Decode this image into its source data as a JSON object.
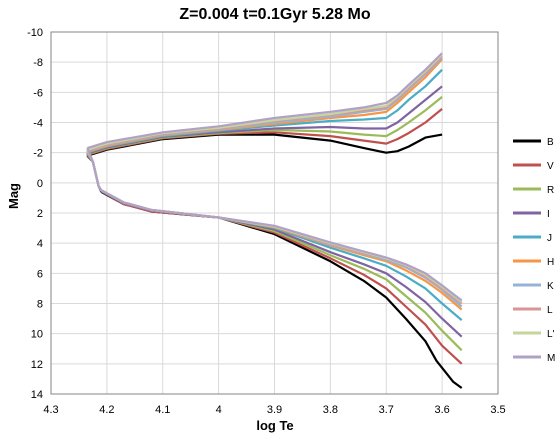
{
  "chart_data": {
    "type": "line",
    "title": "Z=0.004   t=0.1Gyr   5.28 Mo",
    "xlabel": "log Te",
    "ylabel": "Mag",
    "xlim": [
      4.3,
      3.5
    ],
    "ylim": [
      14,
      -10
    ],
    "x_inverted": true,
    "y_inverted": true,
    "grid": true,
    "legend_position": "right",
    "xticks": [
      "4.3",
      "4.2",
      "4.1",
      "4",
      "3.9",
      "3.8",
      "3.7",
      "3.6",
      "3.5"
    ],
    "yticks": [
      "-10",
      "-8",
      "-6",
      "-4",
      "-2",
      "0",
      "2",
      "4",
      "6",
      "8",
      "10",
      "12",
      "14"
    ],
    "series": [
      {
        "name": "B",
        "color": "#000000",
        "lower": [
          [
            4.21,
            0.6
          ],
          [
            4.17,
            1.4
          ],
          [
            4.12,
            1.9
          ],
          [
            4.0,
            2.3
          ],
          [
            3.9,
            3.4
          ],
          [
            3.8,
            5.2
          ],
          [
            3.74,
            6.5
          ],
          [
            3.7,
            7.6
          ],
          [
            3.665,
            9.0
          ],
          [
            3.63,
            10.5
          ],
          [
            3.61,
            11.8
          ],
          [
            3.58,
            13.2
          ],
          [
            3.565,
            13.6
          ]
        ],
        "upper": [
          [
            4.235,
            -1.8
          ],
          [
            4.2,
            -2.2
          ],
          [
            4.1,
            -2.9
          ],
          [
            4.0,
            -3.2
          ],
          [
            3.9,
            -3.2
          ],
          [
            3.8,
            -2.8
          ],
          [
            3.74,
            -2.3
          ],
          [
            3.7,
            -2.0
          ],
          [
            3.68,
            -2.1
          ],
          [
            3.66,
            -2.4
          ],
          [
            3.63,
            -3.0
          ],
          [
            3.6,
            -3.2
          ]
        ]
      },
      {
        "name": "V",
        "color": "#c0504d",
        "lower": [
          [
            4.21,
            0.55
          ],
          [
            4.17,
            1.4
          ],
          [
            4.12,
            1.9
          ],
          [
            4.0,
            2.3
          ],
          [
            3.9,
            3.3
          ],
          [
            3.8,
            5.0
          ],
          [
            3.74,
            6.1
          ],
          [
            3.7,
            7.0
          ],
          [
            3.665,
            8.2
          ],
          [
            3.63,
            9.4
          ],
          [
            3.6,
            10.8
          ],
          [
            3.565,
            12.0
          ]
        ],
        "upper": [
          [
            4.235,
            -1.85
          ],
          [
            4.2,
            -2.25
          ],
          [
            4.1,
            -2.95
          ],
          [
            4.0,
            -3.25
          ],
          [
            3.9,
            -3.35
          ],
          [
            3.8,
            -3.1
          ],
          [
            3.74,
            -2.8
          ],
          [
            3.7,
            -2.6
          ],
          [
            3.68,
            -2.9
          ],
          [
            3.66,
            -3.3
          ],
          [
            3.63,
            -4.0
          ],
          [
            3.6,
            -4.9
          ]
        ]
      },
      {
        "name": "R",
        "color": "#9bbb59",
        "lower": [
          [
            4.21,
            0.55
          ],
          [
            4.17,
            1.35
          ],
          [
            4.12,
            1.85
          ],
          [
            4.0,
            2.3
          ],
          [
            3.9,
            3.2
          ],
          [
            3.8,
            4.8
          ],
          [
            3.74,
            5.7
          ],
          [
            3.7,
            6.4
          ],
          [
            3.665,
            7.5
          ],
          [
            3.63,
            8.6
          ],
          [
            3.6,
            9.8
          ],
          [
            3.565,
            11.1
          ]
        ],
        "upper": [
          [
            4.235,
            -1.9
          ],
          [
            4.2,
            -2.3
          ],
          [
            4.1,
            -3.0
          ],
          [
            4.0,
            -3.3
          ],
          [
            3.9,
            -3.5
          ],
          [
            3.8,
            -3.4
          ],
          [
            3.74,
            -3.2
          ],
          [
            3.7,
            -3.1
          ],
          [
            3.68,
            -3.5
          ],
          [
            3.66,
            -4.0
          ],
          [
            3.63,
            -4.8
          ],
          [
            3.6,
            -5.7
          ]
        ]
      },
      {
        "name": "I",
        "color": "#8064a2",
        "lower": [
          [
            4.21,
            0.55
          ],
          [
            4.17,
            1.35
          ],
          [
            4.12,
            1.85
          ],
          [
            4.0,
            2.3
          ],
          [
            3.9,
            3.1
          ],
          [
            3.8,
            4.6
          ],
          [
            3.74,
            5.4
          ],
          [
            3.7,
            6.0
          ],
          [
            3.665,
            6.9
          ],
          [
            3.63,
            7.9
          ],
          [
            3.6,
            9.0
          ],
          [
            3.565,
            10.2
          ]
        ],
        "upper": [
          [
            4.235,
            -1.95
          ],
          [
            4.2,
            -2.35
          ],
          [
            4.1,
            -3.05
          ],
          [
            4.0,
            -3.35
          ],
          [
            3.9,
            -3.6
          ],
          [
            3.8,
            -3.7
          ],
          [
            3.74,
            -3.6
          ],
          [
            3.7,
            -3.6
          ],
          [
            3.68,
            -4.0
          ],
          [
            3.66,
            -4.6
          ],
          [
            3.63,
            -5.5
          ],
          [
            3.6,
            -6.4
          ]
        ]
      },
      {
        "name": "J",
        "color": "#4bacc6",
        "lower": [
          [
            4.21,
            0.5
          ],
          [
            4.17,
            1.3
          ],
          [
            4.12,
            1.8
          ],
          [
            4.0,
            2.3
          ],
          [
            3.9,
            3.0
          ],
          [
            3.8,
            4.3
          ],
          [
            3.74,
            5.0
          ],
          [
            3.7,
            5.5
          ],
          [
            3.665,
            6.2
          ],
          [
            3.63,
            7.0
          ],
          [
            3.6,
            8.0
          ],
          [
            3.565,
            9.1
          ]
        ],
        "upper": [
          [
            4.235,
            -2.0
          ],
          [
            4.2,
            -2.4
          ],
          [
            4.1,
            -3.1
          ],
          [
            4.0,
            -3.45
          ],
          [
            3.9,
            -3.8
          ],
          [
            3.8,
            -4.1
          ],
          [
            3.74,
            -4.2
          ],
          [
            3.7,
            -4.3
          ],
          [
            3.68,
            -4.8
          ],
          [
            3.66,
            -5.5
          ],
          [
            3.63,
            -6.4
          ],
          [
            3.6,
            -7.5
          ]
        ]
      },
      {
        "name": "H",
        "color": "#f79646",
        "lower": [
          [
            4.21,
            0.5
          ],
          [
            4.17,
            1.3
          ],
          [
            4.12,
            1.8
          ],
          [
            4.0,
            2.3
          ],
          [
            3.9,
            2.95
          ],
          [
            3.8,
            4.15
          ],
          [
            3.74,
            4.8
          ],
          [
            3.7,
            5.2
          ],
          [
            3.665,
            5.8
          ],
          [
            3.63,
            6.5
          ],
          [
            3.6,
            7.3
          ],
          [
            3.565,
            8.4
          ]
        ],
        "upper": [
          [
            4.235,
            -2.05
          ],
          [
            4.2,
            -2.45
          ],
          [
            4.1,
            -3.15
          ],
          [
            4.0,
            -3.5
          ],
          [
            3.9,
            -3.9
          ],
          [
            3.8,
            -4.3
          ],
          [
            3.74,
            -4.5
          ],
          [
            3.7,
            -4.7
          ],
          [
            3.68,
            -5.3
          ],
          [
            3.66,
            -6.0
          ],
          [
            3.63,
            -7.0
          ],
          [
            3.6,
            -8.2
          ]
        ]
      },
      {
        "name": "K",
        "color": "#95b3d7",
        "lower": [
          [
            4.21,
            0.5
          ],
          [
            4.17,
            1.3
          ],
          [
            4.12,
            1.8
          ],
          [
            4.0,
            2.3
          ],
          [
            3.9,
            2.9
          ],
          [
            3.8,
            4.1
          ],
          [
            3.74,
            4.7
          ],
          [
            3.7,
            5.1
          ],
          [
            3.665,
            5.6
          ],
          [
            3.63,
            6.3
          ],
          [
            3.6,
            7.1
          ],
          [
            3.565,
            8.2
          ]
        ],
        "upper": [
          [
            4.235,
            -2.1
          ],
          [
            4.2,
            -2.5
          ],
          [
            4.1,
            -3.2
          ],
          [
            4.0,
            -3.55
          ],
          [
            3.9,
            -4.0
          ],
          [
            3.8,
            -4.4
          ],
          [
            3.74,
            -4.7
          ],
          [
            3.7,
            -4.9
          ],
          [
            3.68,
            -5.5
          ],
          [
            3.66,
            -6.2
          ],
          [
            3.63,
            -7.2
          ],
          [
            3.6,
            -8.3
          ]
        ]
      },
      {
        "name": "L",
        "color": "#d99694",
        "lower": [
          [
            4.21,
            0.5
          ],
          [
            4.17,
            1.3
          ],
          [
            4.12,
            1.8
          ],
          [
            4.0,
            2.3
          ],
          [
            3.9,
            2.9
          ],
          [
            3.8,
            4.05
          ],
          [
            3.74,
            4.65
          ],
          [
            3.7,
            5.0
          ],
          [
            3.665,
            5.5
          ],
          [
            3.63,
            6.2
          ],
          [
            3.6,
            7.0
          ],
          [
            3.565,
            8.0
          ]
        ],
        "upper": [
          [
            4.235,
            -2.15
          ],
          [
            4.2,
            -2.55
          ],
          [
            4.1,
            -3.25
          ],
          [
            4.0,
            -3.6
          ],
          [
            3.9,
            -4.1
          ],
          [
            3.8,
            -4.5
          ],
          [
            3.74,
            -4.8
          ],
          [
            3.7,
            -5.0
          ],
          [
            3.68,
            -5.6
          ],
          [
            3.66,
            -6.3
          ],
          [
            3.63,
            -7.3
          ],
          [
            3.6,
            -8.4
          ]
        ]
      },
      {
        "name": "L'",
        "color": "#c3d69b",
        "lower": [
          [
            4.21,
            0.5
          ],
          [
            4.17,
            1.3
          ],
          [
            4.12,
            1.8
          ],
          [
            4.0,
            2.3
          ],
          [
            3.9,
            2.9
          ],
          [
            3.8,
            4.0
          ],
          [
            3.74,
            4.6
          ],
          [
            3.7,
            5.0
          ],
          [
            3.665,
            5.45
          ],
          [
            3.63,
            6.1
          ],
          [
            3.6,
            6.9
          ],
          [
            3.565,
            7.9
          ]
        ],
        "upper": [
          [
            4.235,
            -2.2
          ],
          [
            4.2,
            -2.6
          ],
          [
            4.1,
            -3.3
          ],
          [
            4.0,
            -3.65
          ],
          [
            3.9,
            -4.15
          ],
          [
            3.8,
            -4.55
          ],
          [
            3.74,
            -4.9
          ],
          [
            3.7,
            -5.1
          ],
          [
            3.68,
            -5.7
          ],
          [
            3.66,
            -6.4
          ],
          [
            3.63,
            -7.4
          ],
          [
            3.6,
            -8.5
          ]
        ]
      },
      {
        "name": "M",
        "color": "#b2a1c7",
        "lower": [
          [
            4.21,
            0.5
          ],
          [
            4.17,
            1.3
          ],
          [
            4.12,
            1.8
          ],
          [
            4.0,
            2.3
          ],
          [
            3.9,
            2.85
          ],
          [
            3.8,
            3.95
          ],
          [
            3.74,
            4.55
          ],
          [
            3.7,
            4.95
          ],
          [
            3.665,
            5.4
          ],
          [
            3.63,
            6.0
          ],
          [
            3.6,
            6.8
          ],
          [
            3.565,
            7.8
          ]
        ],
        "upper": [
          [
            4.235,
            -2.3
          ],
          [
            4.2,
            -2.7
          ],
          [
            4.1,
            -3.35
          ],
          [
            4.0,
            -3.75
          ],
          [
            3.9,
            -4.3
          ],
          [
            3.8,
            -4.7
          ],
          [
            3.74,
            -5.0
          ],
          [
            3.7,
            -5.3
          ],
          [
            3.68,
            -5.8
          ],
          [
            3.66,
            -6.5
          ],
          [
            3.63,
            -7.5
          ],
          [
            3.6,
            -8.6
          ]
        ]
      }
    ]
  }
}
